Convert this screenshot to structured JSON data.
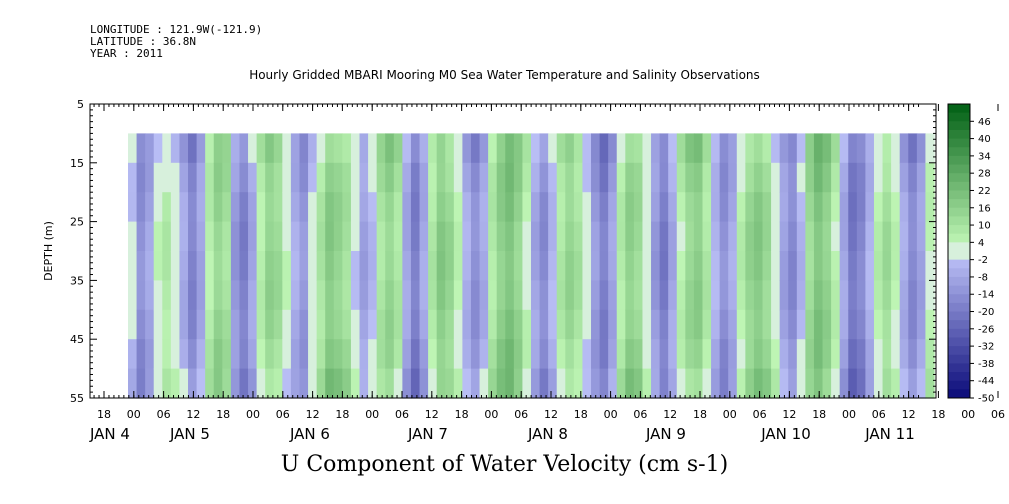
{
  "header": {
    "longitude": "LONGITUDE : 121.9W(-121.9)",
    "latitude": "LATITUDE : 36.8N",
    "year": "YEAR : 2011"
  },
  "chart_data": {
    "type": "heatmap",
    "title": "Hourly Gridded MBARI Mooring M0 Sea Water Temperature and Salinity Observations",
    "xlabel": "U Component of Water Velocity (cm s-1)",
    "ylabel": "DEPTH (m)",
    "ylim": [
      55,
      5
    ],
    "yticks": [
      "5",
      "15",
      "25",
      "35",
      "45",
      "55"
    ],
    "x_hour_ticks": [
      "18",
      "00",
      "06",
      "12",
      "18",
      "00",
      "06",
      "12",
      "18",
      "00",
      "06",
      "12",
      "18",
      "00",
      "06",
      "12",
      "18",
      "00",
      "06",
      "12",
      "18",
      "00",
      "06",
      "12",
      "18",
      "00",
      "06",
      "12",
      "18",
      "00",
      "06",
      "12"
    ],
    "x_day_labels": [
      "JAN  4",
      "JAN  5",
      "JAN  6",
      "JAN  7",
      "JAN  8",
      "JAN  9",
      "JAN 10",
      "JAN 11"
    ],
    "data_depth_range": [
      10,
      55
    ],
    "colorbar": {
      "labels": [
        "46",
        "40",
        "34",
        "28",
        "22",
        "16",
        "10",
        "4",
        "-2",
        "-8",
        "-14",
        "-20",
        "-26",
        "-32",
        "-38",
        "-44",
        "-50"
      ],
      "min": -50,
      "max": 52
    },
    "velocity_profile_by_hour": [
      0,
      -12,
      -6,
      5,
      9,
      3,
      -7,
      -18,
      -10,
      4,
      12,
      8,
      -14,
      -20,
      -9,
      6,
      16,
      14,
      5,
      -4,
      -10,
      2,
      10,
      18,
      14,
      9,
      -3,
      -12,
      -6,
      7,
      13,
      8,
      -8,
      -18,
      -6,
      10,
      20,
      16,
      6,
      -5,
      -14,
      -8,
      6,
      14,
      18,
      12,
      2,
      -10,
      -16,
      -4,
      9,
      16,
      12,
      3,
      -9,
      -17,
      -8,
      7,
      15,
      11,
      -2,
      -14,
      -22,
      -10,
      4,
      13,
      17,
      9,
      -3,
      -12,
      -5,
      8,
      16,
      19,
      13,
      1,
      -11,
      -18,
      -7,
      10,
      18,
      14,
      5,
      -8,
      -20,
      -15,
      -3,
      8,
      14,
      6,
      -6,
      -16,
      -10,
      3
    ]
  }
}
